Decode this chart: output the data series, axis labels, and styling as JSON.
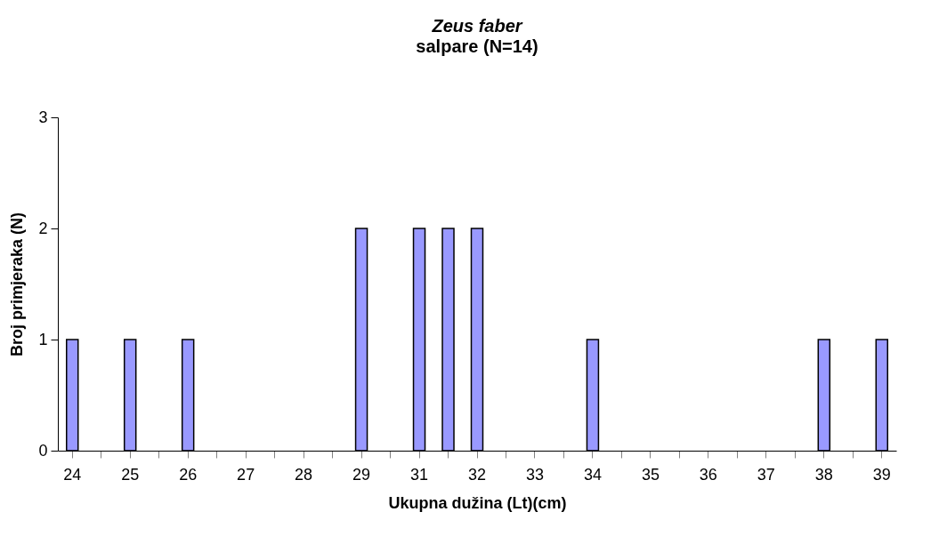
{
  "chart_data": {
    "type": "bar",
    "title": "Zeus faber",
    "subtitle": "salpare (N=14)",
    "xlabel": "Ukupna dužina (Lt)(cm)",
    "ylabel": "Broj primjeraka (N)",
    "categories": [
      "24",
      null,
      "25",
      null,
      "26",
      null,
      "27",
      null,
      "28",
      null,
      "29",
      null,
      "31",
      null,
      "32",
      null,
      "33",
      null,
      "34",
      null,
      "35",
      null,
      "36",
      null,
      "37",
      null,
      "38",
      null,
      "39"
    ],
    "values": [
      1,
      0,
      1,
      0,
      1,
      0,
      0,
      0,
      0,
      0,
      2,
      0,
      2,
      2,
      2,
      0,
      0,
      0,
      1,
      0,
      0,
      0,
      0,
      0,
      0,
      0,
      1,
      0,
      1
    ],
    "color": "#9999ff",
    "ylim": [
      0,
      3
    ],
    "yticks": [
      0,
      1,
      2,
      3
    ],
    "grid": false
  }
}
